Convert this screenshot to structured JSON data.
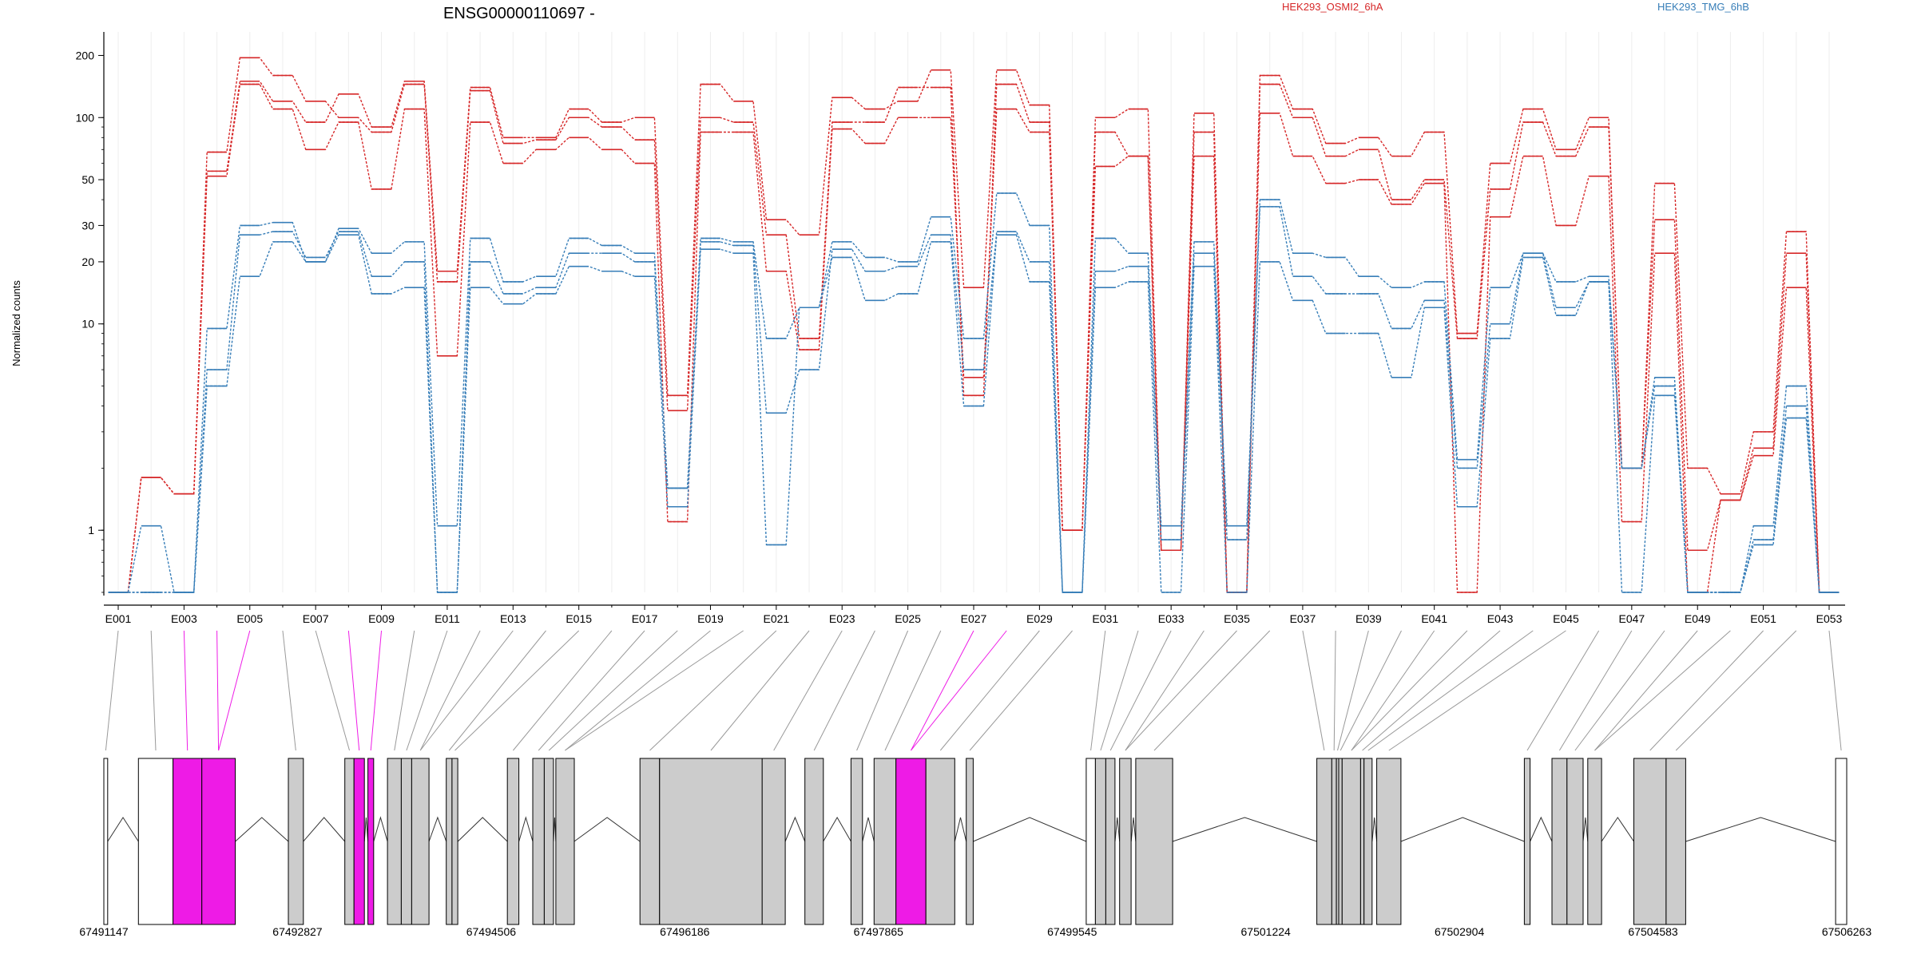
{
  "chart_data": {
    "type": "line",
    "title": "ENSG00000110697 -",
    "ylabel": "Normalized counts",
    "xlabel": "",
    "yscale": "log",
    "ylim": [
      0.5,
      260
    ],
    "yticks": [
      1,
      10,
      20,
      30,
      50,
      100,
      200
    ],
    "grid": true,
    "legend": [
      "HEK293_OSMI2_6hA",
      "HEK293_TMG_6hB"
    ],
    "legend_colors": [
      "#d62728",
      "#377eb8"
    ],
    "exons": [
      "E001",
      "E002",
      "E003",
      "E004",
      "E005",
      "E006",
      "E007",
      "E008",
      "E009",
      "E010",
      "E011",
      "E012",
      "E013",
      "E014",
      "E015",
      "E016",
      "E017",
      "E018",
      "E019",
      "E020",
      "E021",
      "E022",
      "E023",
      "E024",
      "E025",
      "E026",
      "E027",
      "E028",
      "E029",
      "E030",
      "E031",
      "E032",
      "E033",
      "E034",
      "E035",
      "E036",
      "E037",
      "E038",
      "E039",
      "E040",
      "E041",
      "E042",
      "E043",
      "E044",
      "E045",
      "E046",
      "E047",
      "E048",
      "E049",
      "E050",
      "E051",
      "E052",
      "E053"
    ],
    "exon_ticklabels": [
      "E001",
      "E003",
      "E005",
      "E007",
      "E009",
      "E011",
      "E013",
      "E015",
      "E017",
      "E019",
      "E021",
      "E023",
      "E025",
      "E027",
      "E029",
      "E031",
      "E033",
      "E035",
      "E037",
      "E039",
      "E041",
      "E043",
      "E045",
      "E047",
      "E049",
      "E051",
      "E053"
    ],
    "series": [
      {
        "name": "HEK293_OSMI2_6hA",
        "color": "#d62728",
        "style": "dashed",
        "values": [
          0.5,
          1.8,
          1.5,
          55,
          150,
          120,
          95,
          130,
          90,
          150,
          18,
          140,
          80,
          80,
          110,
          95,
          100,
          4.5,
          145,
          120,
          32,
          27,
          125,
          110,
          120,
          170,
          15,
          170,
          115,
          1.0,
          100,
          110,
          0.8,
          105,
          0.5,
          160,
          110,
          75,
          80,
          65,
          85,
          9.0,
          60,
          110,
          70,
          100,
          2.0,
          48,
          2.0,
          1.5,
          3.0,
          28,
          0.5
        ]
      },
      {
        "name": "",
        "color": "#d62728",
        "style": "dashed",
        "values": [
          0.5,
          1.8,
          1.5,
          68,
          195,
          160,
          120,
          100,
          85,
          145,
          16,
          135,
          75,
          78,
          100,
          90,
          78,
          3.8,
          100,
          95,
          27,
          8.5,
          95,
          95,
          140,
          140,
          4.5,
          145,
          95,
          1.0,
          85,
          65,
          0.8,
          85,
          0.5,
          145,
          100,
          65,
          70,
          40,
          50,
          8.5,
          45,
          95,
          65,
          90,
          2.0,
          32,
          0.8,
          1.4,
          2.5,
          22,
          0.5
        ]
      },
      {
        "name": "",
        "color": "#d62728",
        "style": "dashed",
        "values": [
          0.5,
          1.8,
          1.5,
          52,
          145,
          110,
          70,
          95,
          45,
          110,
          7.0,
          95,
          60,
          70,
          80,
          70,
          60,
          1.1,
          85,
          85,
          18,
          7.5,
          88,
          75,
          100,
          100,
          5.5,
          110,
          85,
          1.0,
          58,
          65,
          0.8,
          65,
          0.5,
          105,
          65,
          48,
          50,
          38,
          48,
          0.5,
          33,
          65,
          30,
          52,
          1.1,
          22,
          0.5,
          1.4,
          2.3,
          15,
          0.5
        ]
      },
      {
        "name": "HEK293_TMG_6hB",
        "color": "#377eb8",
        "style": "dashed",
        "values": [
          0.5,
          1.05,
          0.5,
          9.5,
          30,
          31,
          20,
          29,
          22,
          25,
          1.05,
          26,
          16,
          17,
          26,
          24,
          22,
          1.6,
          26,
          25,
          8.5,
          12,
          25,
          21,
          20,
          33,
          8.5,
          43,
          30,
          0.5,
          26,
          22,
          1.05,
          25,
          1.05,
          40,
          22,
          21,
          17,
          15,
          16,
          2.2,
          15,
          22,
          16,
          17,
          2.0,
          5.5,
          0.5,
          0.5,
          1.05,
          5.0,
          0.5
        ]
      },
      {
        "name": "",
        "color": "#377eb8",
        "style": "dashed",
        "values": [
          0.5,
          0.5,
          0.5,
          6.0,
          27,
          28,
          21,
          28,
          17,
          20,
          0.5,
          20,
          14,
          15,
          22,
          22,
          20,
          1.6,
          25,
          24,
          3.7,
          6.0,
          23,
          18,
          19,
          27,
          6.0,
          28,
          20,
          0.5,
          18,
          19,
          0.9,
          22,
          0.9,
          37,
          17,
          14,
          14,
          9.5,
          13,
          2.0,
          10,
          22,
          12,
          16,
          2.0,
          5.0,
          0.5,
          0.5,
          0.9,
          4.0,
          0.5
        ]
      },
      {
        "name": "",
        "color": "#377eb8",
        "style": "dashed",
        "values": [
          0.5,
          0.5,
          0.5,
          5.0,
          17,
          25,
          20,
          27,
          14,
          15,
          0.5,
          15,
          12.5,
          14,
          19,
          18,
          17,
          1.3,
          23,
          22,
          0.85,
          12,
          21,
          13,
          14,
          25,
          4.0,
          27,
          16,
          0.5,
          15,
          16,
          0.5,
          19,
          0.5,
          20,
          13,
          9,
          9,
          5.5,
          12,
          1.3,
          8.5,
          21,
          11,
          16,
          0.5,
          4.5,
          0.5,
          0.5,
          0.85,
          3.5,
          0.5
        ]
      }
    ],
    "gene_model": {
      "coordinate_labels": [
        "67491147",
        "67492827",
        "67494506",
        "67496186",
        "67497865",
        "67499545",
        "67501224",
        "67502904",
        "67504583",
        "67506263"
      ],
      "coord_start": 67491147,
      "coord_end": 67506263,
      "exon_segments": [
        [
          67491147,
          67491180
        ],
        [
          67491447,
          67491747
        ],
        [
          67491747,
          67491997
        ],
        [
          67491997,
          67492287
        ],
        [
          67492747,
          67492877
        ],
        [
          67493237,
          67493317
        ],
        [
          67493317,
          67493407
        ],
        [
          67493437,
          67493487
        ],
        [
          67493607,
          67493727
        ],
        [
          67493727,
          67493817
        ],
        [
          67493817,
          67493967
        ],
        [
          67494117,
          67494167
        ],
        [
          67494167,
          67494217
        ],
        [
          67494647,
          67494747
        ],
        [
          67494867,
          67494967
        ],
        [
          67494967,
          67495047
        ],
        [
          67495067,
          67495227
        ],
        [
          67495797,
          67495967
        ],
        [
          67495967,
          67496857
        ],
        [
          67496857,
          67497057
        ],
        [
          67497227,
          67497387
        ],
        [
          67497627,
          67497727
        ],
        [
          67497827,
          67498017
        ],
        [
          67498017,
          67498277
        ],
        [
          67498277,
          67498527
        ],
        [
          67498627,
          67498687
        ],
        [
          67499667,
          67499747
        ],
        [
          67499747,
          67499837
        ],
        [
          67499837,
          67499917
        ],
        [
          67499957,
          67500057
        ],
        [
          67500097,
          67500417
        ],
        [
          67501667,
          67501797
        ],
        [
          67501797,
          67501837
        ],
        [
          67501837,
          67501857
        ],
        [
          67501857,
          67501887
        ],
        [
          67501887,
          67502047
        ],
        [
          67502047,
          67502077
        ],
        [
          67502077,
          67502147
        ],
        [
          67502187,
          67502397
        ],
        [
          67503467,
          67503517
        ],
        [
          67503707,
          67503837
        ],
        [
          67503837,
          67503977
        ],
        [
          67504017,
          67504137
        ],
        [
          67504417,
          67504697
        ],
        [
          67504697,
          67504867
        ],
        [
          67506167,
          67506263
        ]
      ],
      "highlight_segments": [
        2,
        3,
        6,
        7,
        23
      ],
      "highlight_color": "#ee1be6"
    }
  }
}
